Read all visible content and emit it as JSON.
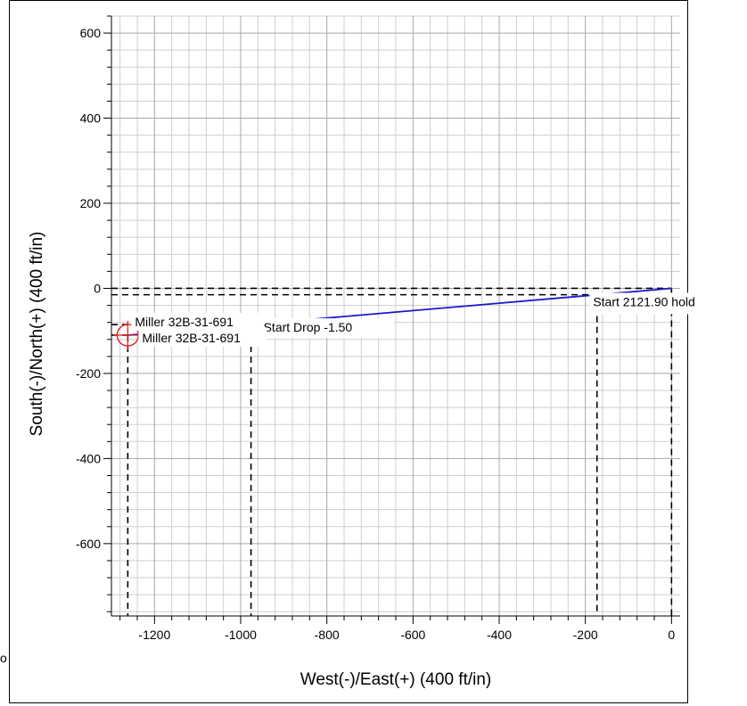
{
  "chart_data": {
    "type": "line",
    "title": "",
    "xlabel": "West(-)/East(+) (400 ft/in)",
    "ylabel": "South(-)/North(+) (400 ft/in)",
    "xlim": [
      -1300,
      20
    ],
    "ylim": [
      -770,
      640
    ],
    "x_ticks": [
      -1200,
      -1000,
      -800,
      -600,
      -400,
      -200,
      0
    ],
    "y_ticks": [
      600,
      400,
      200,
      0,
      -200,
      -400,
      -600
    ],
    "x_ticks_text": [
      "-1200",
      "-1000",
      "-800",
      "-600",
      "-400",
      "-200",
      "0"
    ],
    "y_ticks_text": [
      "600",
      "400",
      "200",
      "0",
      "-200",
      "-400",
      "-600"
    ],
    "grid": true,
    "series": [
      {
        "color": "#1a1acc",
        "x": [
          0,
          -1262
        ],
        "y": [
          0,
          -110
        ]
      }
    ],
    "annotations": [
      {
        "text": "Start 2121.90 hold",
        "x": 0,
        "y": 0
      },
      {
        "text": "Start Drop -1.50",
        "x": -976,
        "y": -85
      },
      {
        "text": "Miller 32B-31-691",
        "x": -1262,
        "y": -110
      },
      {
        "text": "Miller 32B-31-691",
        "x": -1262,
        "y": -110
      }
    ],
    "dashed_verticals": [
      0,
      -173,
      -976,
      -1262
    ],
    "dashed_horizontals": [
      0,
      -15,
      -85,
      -110
    ],
    "target": {
      "x": -1262,
      "y": -110,
      "color": "#e02020"
    }
  },
  "page": {
    "cutoff_glyph": "o"
  }
}
